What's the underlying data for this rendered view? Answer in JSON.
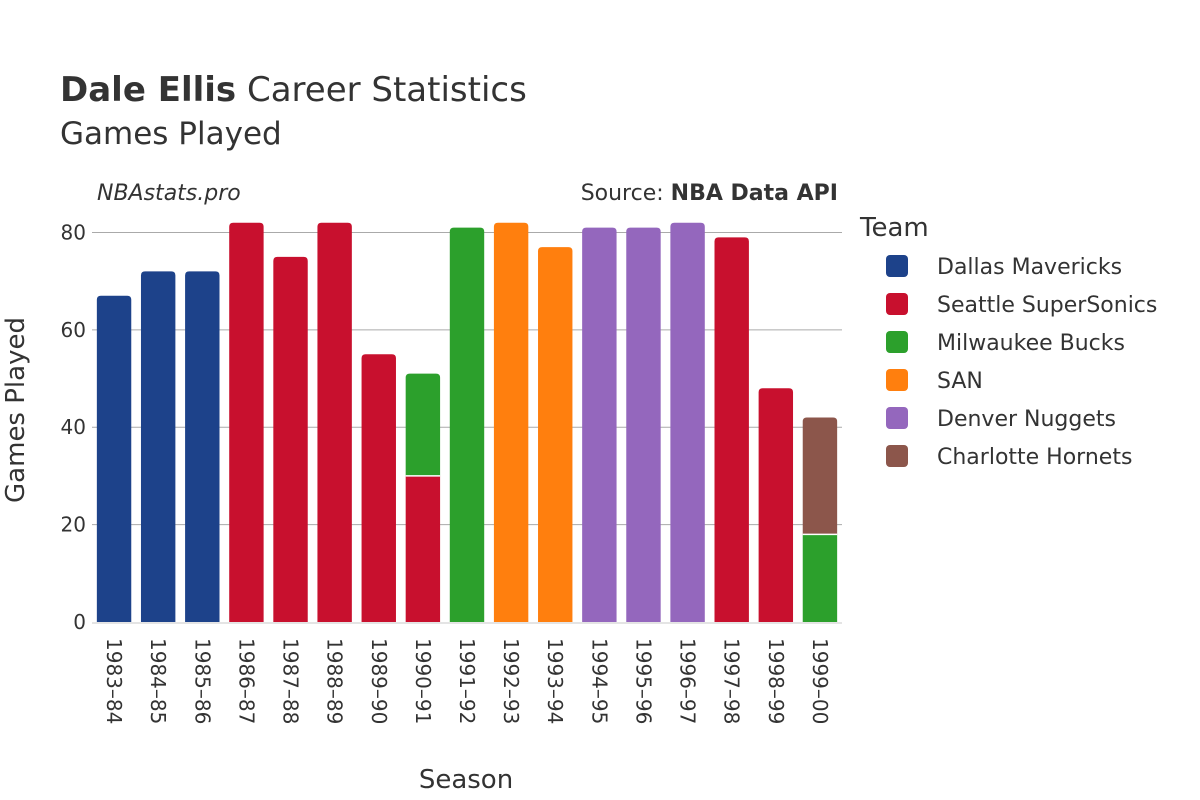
{
  "header": {
    "title_bold": "Dale Ellis",
    "title_rest": "Career Statistics",
    "subtitle": "Games Played",
    "brand": "NBAstats.pro",
    "source_prefix": "Source: ",
    "source_bold": "NBA Data API"
  },
  "chart_data": {
    "type": "bar",
    "stacked": true,
    "xlabel": "Season",
    "ylabel": "Games Played",
    "ylim": [
      0,
      84
    ],
    "yticks": [
      0,
      20,
      40,
      60,
      80
    ],
    "grid": true,
    "legend_title": "Team",
    "legend_position": "right",
    "categories": [
      "1983–84",
      "1984–85",
      "1985–86",
      "1986–87",
      "1987–88",
      "1988–89",
      "1989–90",
      "1990–91",
      "1991–92",
      "1992–93",
      "1993–94",
      "1994–95",
      "1995–96",
      "1996–97",
      "1997–98",
      "1998–99",
      "1999–00"
    ],
    "series": [
      {
        "name": "Dallas Mavericks",
        "color": "#1d428a",
        "values": [
          67,
          72,
          72,
          0,
          0,
          0,
          0,
          0,
          0,
          0,
          0,
          0,
          0,
          0,
          0,
          0,
          0
        ]
      },
      {
        "name": "Seattle SuperSonics",
        "color": "#c8102e",
        "values": [
          0,
          0,
          0,
          82,
          75,
          82,
          55,
          30,
          0,
          0,
          0,
          0,
          0,
          0,
          79,
          48,
          0
        ]
      },
      {
        "name": "Milwaukee Bucks",
        "color": "#2ca02c",
        "values": [
          0,
          0,
          0,
          0,
          0,
          0,
          0,
          21,
          81,
          0,
          0,
          0,
          0,
          0,
          0,
          0,
          18
        ]
      },
      {
        "name": "SAN",
        "color": "#ff7f0e",
        "values": [
          0,
          0,
          0,
          0,
          0,
          0,
          0,
          0,
          0,
          82,
          77,
          0,
          0,
          0,
          0,
          0,
          0
        ]
      },
      {
        "name": "Denver Nuggets",
        "color": "#9467bd",
        "values": [
          0,
          0,
          0,
          0,
          0,
          0,
          0,
          0,
          0,
          0,
          0,
          81,
          81,
          82,
          0,
          0,
          0
        ]
      },
      {
        "name": "Charlotte Hornets",
        "color": "#8c564b",
        "values": [
          0,
          0,
          0,
          0,
          0,
          0,
          0,
          0,
          0,
          0,
          0,
          0,
          0,
          0,
          0,
          0,
          24
        ]
      }
    ]
  }
}
